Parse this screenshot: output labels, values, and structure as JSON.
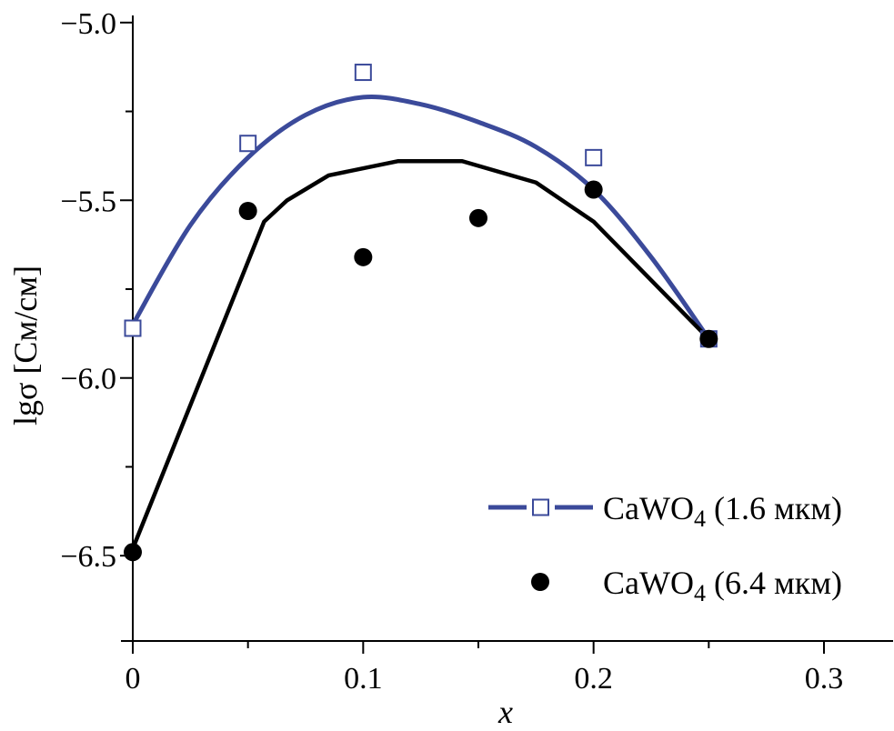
{
  "chart_data": {
    "type": "scatter",
    "xlabel": "x",
    "ylabel": "lgσ [См/см]",
    "xlim": [
      0,
      0.33
    ],
    "ylim": [
      -6.74,
      -4.98
    ],
    "x_ticks": [
      0,
      0.1,
      0.2,
      0.3
    ],
    "x_tick_labels": [
      "0",
      "0.1",
      "0.2",
      "0.3"
    ],
    "y_ticks": [
      -5.0,
      -5.5,
      -6.0,
      -6.5
    ],
    "y_tick_labels": [
      "−5.0",
      "−5.5",
      "−6.0",
      "−6.5"
    ],
    "legend_position": "bottom-right",
    "series": [
      {
        "name": "CaWO4 (1.6 мкм)",
        "name_base": "CaWO",
        "name_sub": "4",
        "name_rest": " (1.6 мкм)",
        "color": "#3b4a9a",
        "marker": "open-square",
        "points": [
          {
            "x": 0,
            "y": -5.86
          },
          {
            "x": 0.05,
            "y": -5.34
          },
          {
            "x": 0.1,
            "y": -5.14
          },
          {
            "x": 0.2,
            "y": -5.38
          },
          {
            "x": 0.25,
            "y": -5.89
          }
        ],
        "fit": [
          {
            "x": 0.0,
            "y": -5.85
          },
          {
            "x": 0.025,
            "y": -5.57
          },
          {
            "x": 0.05,
            "y": -5.38
          },
          {
            "x": 0.075,
            "y": -5.26
          },
          {
            "x": 0.1,
            "y": -5.21
          },
          {
            "x": 0.125,
            "y": -5.23
          },
          {
            "x": 0.15,
            "y": -5.28
          },
          {
            "x": 0.175,
            "y": -5.35
          },
          {
            "x": 0.2,
            "y": -5.47
          },
          {
            "x": 0.225,
            "y": -5.66
          },
          {
            "x": 0.25,
            "y": -5.89
          }
        ]
      },
      {
        "name": "CaWO4 (6.4 мкм)",
        "name_base": "CaWO",
        "name_sub": "4",
        "name_rest": " (6.4 мкм)",
        "color": "#000000",
        "marker": "filled-circle",
        "points": [
          {
            "x": 0,
            "y": -6.49
          },
          {
            "x": 0.05,
            "y": -5.53
          },
          {
            "x": 0.1,
            "y": -5.66
          },
          {
            "x": 0.15,
            "y": -5.55
          },
          {
            "x": 0.2,
            "y": -5.47
          },
          {
            "x": 0.25,
            "y": -5.89
          }
        ],
        "fit": [
          {
            "x": 0.0,
            "y": -6.48
          },
          {
            "x": 0.057,
            "y": -5.56
          },
          {
            "x": 0.067,
            "y": -5.5
          },
          {
            "x": 0.085,
            "y": -5.43
          },
          {
            "x": 0.115,
            "y": -5.39
          },
          {
            "x": 0.143,
            "y": -5.39
          },
          {
            "x": 0.175,
            "y": -5.45
          },
          {
            "x": 0.2,
            "y": -5.56
          },
          {
            "x": 0.25,
            "y": -5.89
          }
        ]
      }
    ]
  }
}
